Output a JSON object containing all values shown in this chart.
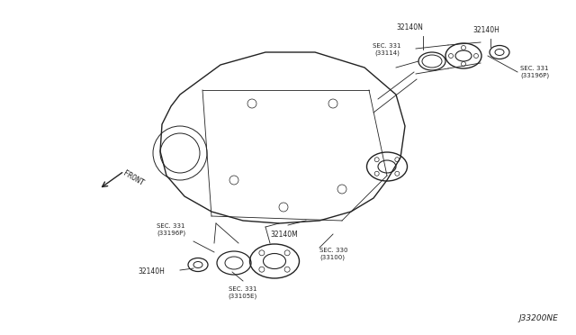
{
  "bg_color": "#ffffff",
  "fig_width": 6.4,
  "fig_height": 3.72,
  "dpi": 100,
  "diagram_id": "J33200NE",
  "labels": {
    "top_right_1": "32140N",
    "top_right_2": "32140H",
    "top_sec1": "SEC. 331\n(33114)",
    "top_sec2": "SEC. 331\n(33196P)",
    "mid_label": "32140M",
    "bot_sec1": "SEC. 331\n(33196P)",
    "bot_sec2": "SEC. 331\n(33105E)",
    "bot_sec3": "SEC. 330\n(33100)",
    "bot_label": "32140H",
    "front_label": "FRONT"
  },
  "line_color": "#222222",
  "text_color": "#222222",
  "small_font": 5.5,
  "label_font": 6.5,
  "diagram_font": 7.0
}
